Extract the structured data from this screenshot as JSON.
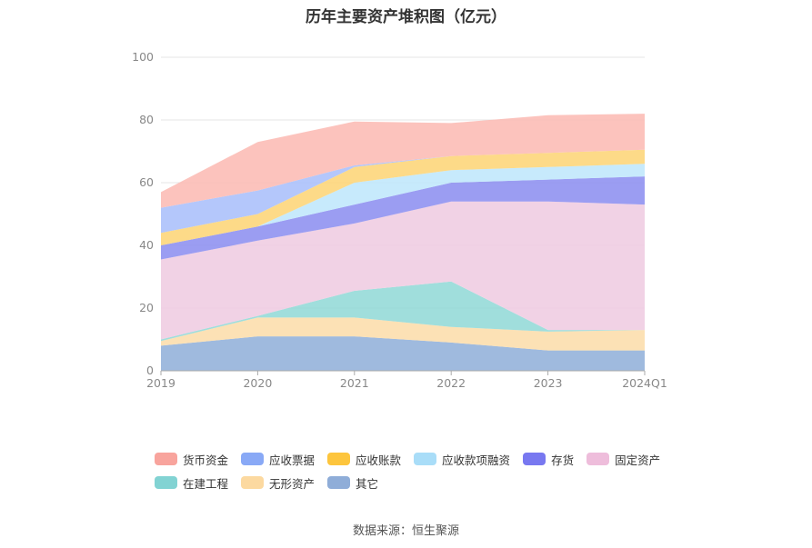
{
  "chart_data": {
    "type": "area",
    "title": "历年主要资产堆积图（亿元）",
    "categories": [
      "2019",
      "2020",
      "2021",
      "2022",
      "2023",
      "2024Q1"
    ],
    "ylim": [
      0,
      100
    ],
    "yticks": [
      "0",
      "20",
      "40",
      "60",
      "80",
      "100"
    ],
    "stacked": true,
    "grid": true,
    "legend_position": "bottom",
    "series": [
      {
        "name": "其它",
        "color": "#8eaed8",
        "values": [
          8,
          11,
          11,
          9,
          6.5,
          6.5
        ]
      },
      {
        "name": "无形资产",
        "color": "#fcdca8",
        "values": [
          1.5,
          6,
          6,
          5,
          6,
          6.5
        ]
      },
      {
        "name": "在建工程",
        "color": "#8fd8d6",
        "values": [
          0.5,
          0.5,
          8.5,
          14.5,
          0.5,
          0
        ]
      },
      {
        "name": "固定资产",
        "color": "#eecae0",
        "values": [
          25.5,
          24,
          21.5,
          25.5,
          41,
          40
        ]
      },
      {
        "name": "存货",
        "color": "#8a8cf0",
        "values": [
          4.5,
          4.5,
          6,
          6,
          7,
          9
        ]
      },
      {
        "name": "应收款项融资",
        "color": "#bde6fb",
        "values": [
          0,
          0,
          7,
          4,
          4,
          4
        ]
      },
      {
        "name": "应收账款",
        "color": "#fdd373",
        "values": [
          4,
          4,
          5,
          4.5,
          4.5,
          4.5
        ]
      },
      {
        "name": "应收票据",
        "color": "#a7bdfa",
        "values": [
          8,
          7.5,
          0.5,
          0,
          0,
          0
        ]
      },
      {
        "name": "货币资金",
        "color": "#fbb8b2",
        "values": [
          5,
          15.5,
          14,
          10.5,
          12,
          11.5
        ]
      }
    ]
  },
  "legend": {
    "items": [
      {
        "label": "货币资金",
        "color": "#f8a49d"
      },
      {
        "label": "应收票据",
        "color": "#89a9f6"
      },
      {
        "label": "应收账款",
        "color": "#fdc53d"
      },
      {
        "label": "应收款项融资",
        "color": "#a9ddf8"
      },
      {
        "label": "存货",
        "color": "#7878f0"
      },
      {
        "label": "固定资产",
        "color": "#eebddb"
      },
      {
        "label": "在建工程",
        "color": "#82d3d3"
      },
      {
        "label": "无形资产",
        "color": "#fcd9a0"
      },
      {
        "label": "其它",
        "color": "#8fadd8"
      }
    ]
  },
  "footer": {
    "source": "数据来源：恒生聚源"
  }
}
